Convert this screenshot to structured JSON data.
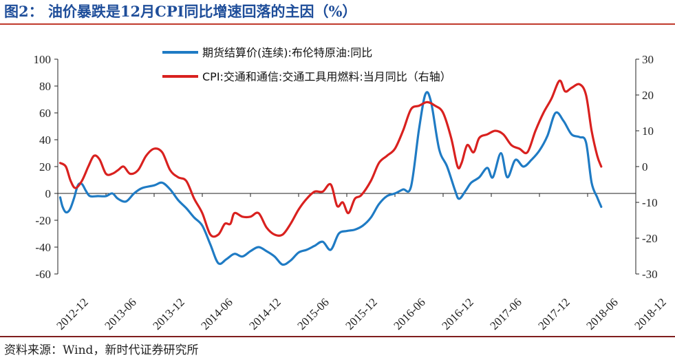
{
  "title": "图2： 油价暴跌是12月CPI同比增速回落的主因（%）",
  "source": "资料来源：Wind，新时代证券研究所",
  "chart_data": {
    "type": "line",
    "title": "图2： 油价暴跌是12月CPI同比增速回落的主因（%）",
    "x_ticks": [
      "2012-12",
      "2013-06",
      "2013-12",
      "2014-06",
      "2014-12",
      "2015-06",
      "2015-12",
      "2016-06",
      "2016-12",
      "2017-06",
      "2017-12",
      "2018-06",
      "2018-12"
    ],
    "y_left": {
      "min": -60,
      "max": 100,
      "step": 20
    },
    "y_right": {
      "min": -30,
      "max": 30,
      "step": 10
    },
    "grid": false,
    "legend_position": "top",
    "series": [
      {
        "name": "期货结算价(连续):布伦特原油:同比",
        "axis": "left",
        "color": "#1f7bc4",
        "points": [
          [
            0.3,
            -3
          ],
          [
            0.6,
            -10
          ],
          [
            1,
            -14
          ],
          [
            1.5,
            -12
          ],
          [
            2,
            -4
          ],
          [
            2.5,
            6
          ],
          [
            3,
            7
          ],
          [
            3.5,
            2
          ],
          [
            4,
            -2
          ],
          [
            5,
            -2
          ],
          [
            6,
            -2
          ],
          [
            6.8,
            0
          ],
          [
            7.5,
            -4
          ],
          [
            8.5,
            -6
          ],
          [
            9.5,
            0
          ],
          [
            10.5,
            4
          ],
          [
            12,
            6
          ],
          [
            13,
            8
          ],
          [
            14,
            3
          ],
          [
            15,
            -5
          ],
          [
            16,
            -11
          ],
          [
            17,
            -18
          ],
          [
            18,
            -24
          ],
          [
            19,
            -38
          ],
          [
            20,
            -52
          ],
          [
            21,
            -49
          ],
          [
            22,
            -45
          ],
          [
            23,
            -47
          ],
          [
            24,
            -43
          ],
          [
            25,
            -40
          ],
          [
            26,
            -43
          ],
          [
            27,
            -47
          ],
          [
            28,
            -53
          ],
          [
            29,
            -50
          ],
          [
            30,
            -44
          ],
          [
            31,
            -42
          ],
          [
            32,
            -39
          ],
          [
            33,
            -36
          ],
          [
            34,
            -42
          ],
          [
            35,
            -30
          ],
          [
            36,
            -28
          ],
          [
            37,
            -27
          ],
          [
            38,
            -24
          ],
          [
            39,
            -18
          ],
          [
            40,
            -8
          ],
          [
            41,
            -2
          ],
          [
            42,
            0
          ],
          [
            43,
            3
          ],
          [
            44,
            5
          ],
          [
            45,
            48
          ],
          [
            45.8,
            74
          ],
          [
            46.5,
            68
          ],
          [
            47.5,
            33
          ],
          [
            48.5,
            20
          ],
          [
            49.5,
            2
          ],
          [
            50,
            -4
          ],
          [
            50.8,
            2
          ],
          [
            51.5,
            8
          ],
          [
            52.5,
            12
          ],
          [
            53.5,
            19
          ],
          [
            54.2,
            12
          ],
          [
            55.2,
            30
          ],
          [
            56,
            12
          ],
          [
            57,
            25
          ],
          [
            58,
            20
          ],
          [
            59,
            25
          ],
          [
            60,
            32
          ],
          [
            61,
            43
          ],
          [
            62,
            60
          ],
          [
            63,
            54
          ],
          [
            64,
            44
          ],
          [
            65,
            42
          ],
          [
            65.8,
            38
          ],
          [
            66.5,
            8
          ],
          [
            67.2,
            -3
          ],
          [
            67.7,
            -10
          ]
        ]
      },
      {
        "name": "CPI:交通和通信:交通工具用燃料:当月同比（右轴）",
        "axis": "right",
        "color": "#d9211f",
        "points": [
          [
            0.3,
            1
          ],
          [
            1,
            0
          ],
          [
            1.6,
            -4
          ],
          [
            2.2,
            -6
          ],
          [
            3,
            -4
          ],
          [
            3.8,
            0
          ],
          [
            4.5,
            3
          ],
          [
            5.2,
            2
          ],
          [
            6,
            -2
          ],
          [
            6.8,
            -2
          ],
          [
            7.5,
            -1
          ],
          [
            8.2,
            0
          ],
          [
            9,
            -2
          ],
          [
            10,
            -1
          ],
          [
            11,
            3
          ],
          [
            12,
            5
          ],
          [
            13,
            4
          ],
          [
            14,
            -1
          ],
          [
            15,
            -3
          ],
          [
            16,
            -4
          ],
          [
            17,
            -9
          ],
          [
            18,
            -13
          ],
          [
            19,
            -19
          ],
          [
            20,
            -19
          ],
          [
            20.8,
            -16
          ],
          [
            21.5,
            -16
          ],
          [
            22,
            -13
          ],
          [
            23,
            -14
          ],
          [
            24,
            -14
          ],
          [
            25,
            -13
          ],
          [
            26,
            -17
          ],
          [
            27,
            -19
          ],
          [
            28,
            -19
          ],
          [
            29,
            -16
          ],
          [
            30,
            -12
          ],
          [
            31,
            -9
          ],
          [
            32,
            -7
          ],
          [
            33,
            -7
          ],
          [
            34,
            -5
          ],
          [
            34.8,
            -11
          ],
          [
            35.5,
            -10
          ],
          [
            36.2,
            -13
          ],
          [
            37,
            -9
          ],
          [
            37.8,
            -8
          ],
          [
            39,
            -4
          ],
          [
            40,
            1
          ],
          [
            41,
            3
          ],
          [
            42,
            5
          ],
          [
            43,
            10
          ],
          [
            44,
            16
          ],
          [
            45,
            17
          ],
          [
            46,
            18
          ],
          [
            47,
            17
          ],
          [
            48,
            15
          ],
          [
            49,
            8
          ],
          [
            49.8,
            0
          ],
          [
            50.3,
            1
          ],
          [
            51,
            6
          ],
          [
            51.8,
            4
          ],
          [
            52.5,
            8
          ],
          [
            53.5,
            9
          ],
          [
            54.5,
            10
          ],
          [
            55.5,
            9
          ],
          [
            56.5,
            6
          ],
          [
            57.5,
            5
          ],
          [
            58.5,
            4
          ],
          [
            59.5,
            10
          ],
          [
            60.5,
            15
          ],
          [
            61.5,
            19
          ],
          [
            62.5,
            24
          ],
          [
            63.2,
            21
          ],
          [
            64,
            22
          ],
          [
            65,
            23
          ],
          [
            65.8,
            20
          ],
          [
            66.5,
            10
          ],
          [
            67.2,
            3
          ],
          [
            67.7,
            0
          ]
        ]
      }
    ]
  }
}
